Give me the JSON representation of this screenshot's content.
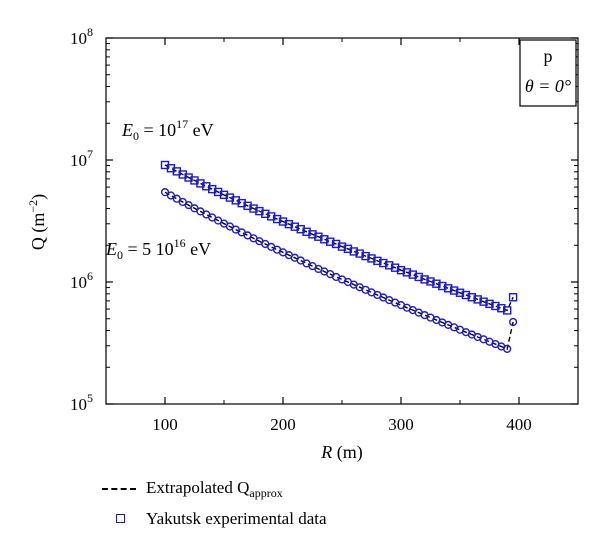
{
  "chart_data": {
    "type": "scatter",
    "xlabel_var": "R",
    "xlabel_unit": " (m)",
    "ylabel_main": "Q (m",
    "ylabel_sup": "−2",
    "ylabel_end": ")",
    "xlim": [
      50,
      450
    ],
    "ylim": [
      100000,
      100000000
    ],
    "yscale": "log",
    "x_ticks": [
      100,
      200,
      300,
      400
    ],
    "x_tick_labels": [
      "100",
      "200",
      "300",
      "400"
    ],
    "y_tick_base": "10",
    "y_tick_exponents": [
      "5",
      "6",
      "7",
      "8"
    ],
    "y_tick_values": [
      100000,
      1000000,
      10000000,
      100000000
    ],
    "grid": false,
    "legend_position": "bottom",
    "annotations": {
      "box_line1": "p",
      "box_line2": "θ = 0°",
      "upper_label_main": "E",
      "upper_label_sub": "0",
      "upper_label_mid": " = 10",
      "upper_label_sup": "17",
      "upper_label_end": " eV",
      "lower_label_main": "E",
      "lower_label_sub": "0",
      "lower_label_mid": " = 5 10",
      "lower_label_sup": "16",
      "lower_label_end": " eV"
    },
    "legend": {
      "fit_label": "Extrapolated Q",
      "fit_sub": "approx",
      "data_label": "Yakutsk experimental data"
    },
    "series": [
      {
        "marker": "square",
        "x": [
          100,
          105,
          110,
          115,
          120,
          125,
          130,
          135,
          140,
          145,
          150,
          155,
          160,
          165,
          170,
          175,
          180,
          185,
          190,
          195,
          200,
          205,
          210,
          215,
          220,
          225,
          230,
          235,
          240,
          245,
          250,
          255,
          260,
          265,
          270,
          275,
          280,
          285,
          290,
          295,
          300,
          305,
          310,
          315,
          320,
          325,
          330,
          335,
          340,
          345,
          350,
          355,
          360,
          365,
          370,
          375,
          380,
          385,
          390,
          395
        ],
        "y": [
          9100000,
          8560000,
          8070000,
          7610000,
          7190000,
          6800000,
          6430000,
          6090000,
          5770000,
          5470000,
          5180000,
          4920000,
          4670000,
          4430000,
          4210000,
          4000000,
          3810000,
          3620000,
          3450000,
          3280000,
          3130000,
          2980000,
          2840000,
          2710000,
          2580000,
          2460000,
          2350000,
          2240000,
          2140000,
          2050000,
          1950000,
          1870000,
          1780000,
          1710000,
          1630000,
          1560000,
          1490000,
          1430000,
          1370000,
          1310000,
          1250000,
          1200000,
          1150000,
          1100000,
          1050000,
          1010000,
          968000,
          927000,
          888000,
          851000,
          816000,
          782000,
          750000,
          720000,
          690000,
          662000,
          636000,
          610000,
          585000,
          750000
        ]
      },
      {
        "marker": "circle",
        "x": [
          100,
          105,
          110,
          115,
          120,
          125,
          130,
          135,
          140,
          145,
          150,
          155,
          160,
          165,
          170,
          175,
          180,
          185,
          190,
          195,
          200,
          205,
          210,
          215,
          220,
          225,
          230,
          235,
          240,
          245,
          250,
          255,
          260,
          265,
          270,
          275,
          280,
          285,
          290,
          295,
          300,
          305,
          310,
          315,
          320,
          325,
          330,
          335,
          340,
          345,
          350,
          355,
          360,
          365,
          370,
          375,
          380,
          385,
          390,
          395
        ],
        "y": [
          5450000,
          5120000,
          4810000,
          4530000,
          4270000,
          4020000,
          3790000,
          3580000,
          3380000,
          3190000,
          3010000,
          2850000,
          2690000,
          2550000,
          2410000,
          2280000,
          2160000,
          2050000,
          1940000,
          1840000,
          1750000,
          1660000,
          1580000,
          1500000,
          1420000,
          1350000,
          1280000,
          1220000,
          1160000,
          1100000,
          1050000,
          1000000,
          952000,
          906000,
          863000,
          822000,
          783000,
          746000,
          711000,
          678000,
          646000,
          616000,
          588000,
          561000,
          535000,
          511000,
          488000,
          466000,
          445000,
          425000,
          406000,
          388000,
          371000,
          354000,
          339000,
          324000,
          310000,
          296000,
          283000,
          470000
        ]
      }
    ]
  }
}
